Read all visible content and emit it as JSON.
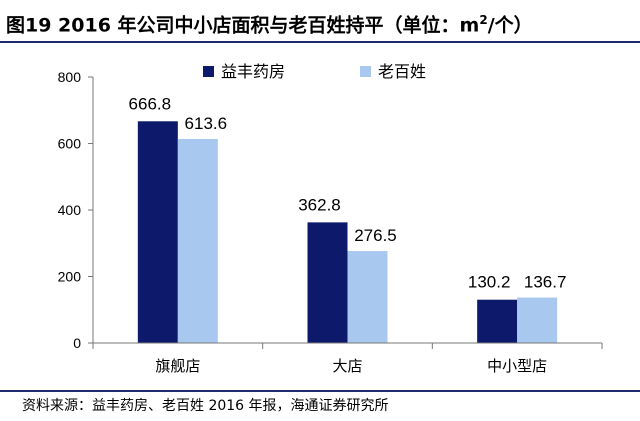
{
  "header": {
    "title_main": "图19 2016 年公司中小店面积与老百姓持平（单位：m",
    "title_sup": "2",
    "title_tail": "/个）"
  },
  "footer": {
    "source": "资料来源：益丰药房、老百姓 2016 年报，海通证券研究所"
  },
  "chart_data": {
    "type": "bar",
    "categories": [
      "旗舰店",
      "大店",
      "中小型店"
    ],
    "series": [
      {
        "name": "益丰药房",
        "values": [
          666.8,
          362.8,
          130.2
        ],
        "color": "#0d1a6b"
      },
      {
        "name": "老百姓",
        "values": [
          613.6,
          276.5,
          136.7
        ],
        "color": "#a8c8f0"
      }
    ],
    "data_labels": [
      [
        "666.8",
        "362.8",
        "130.2"
      ],
      [
        "613.6",
        "276.5",
        "136.7"
      ]
    ],
    "ylim": [
      0,
      800
    ],
    "yticks": [
      0,
      200,
      400,
      600,
      800
    ],
    "grid": false,
    "legend_position": "top-center"
  }
}
